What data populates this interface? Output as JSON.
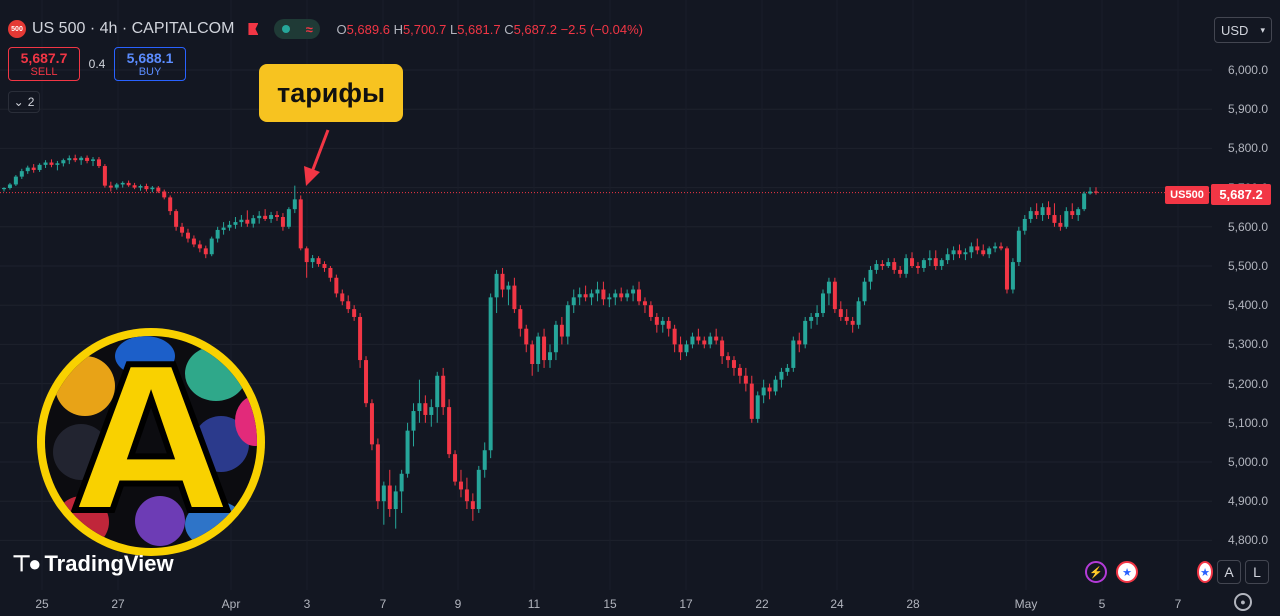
{
  "header": {
    "symbol_badge": "500",
    "title": "US 500 · 4h · CAPITALCOM",
    "ohlc": {
      "o_label": "O",
      "o": "5,689.6",
      "h_label": "H",
      "h": "5,700.7",
      "l_label": "L",
      "l": "5,681.7",
      "c_label": "C",
      "c": "5,687.2",
      "change": "−2.5 (−0.04%)"
    }
  },
  "trade": {
    "sell_price": "5,687.7",
    "sell_label": "SELL",
    "spread": "0.4",
    "buy_price": "5,688.1",
    "buy_label": "BUY"
  },
  "indicators_toggle": {
    "count": "2"
  },
  "currency_select": {
    "value": "USD"
  },
  "annotation": {
    "text": "тарифы"
  },
  "last_price": {
    "symbol_label": "US500",
    "value": "5,687.2"
  },
  "watermark": {
    "brand_letter": "A",
    "tv_text": "TradingView"
  },
  "bottom_controls": {
    "auto_label": "A",
    "log_label": "L"
  },
  "colors": {
    "up": "#26a69a",
    "down": "#f23645",
    "background": "#131722",
    "accent": "#f7c320"
  },
  "icons": [
    "chevron-down-icon",
    "settings-icon",
    "flag-icon",
    "lightning-icon",
    "us-flag-icon",
    "tradingview-logo-icon"
  ],
  "chart_data": {
    "type": "candlestick",
    "timeframe": "4h",
    "y_ticks": [
      "6,000.0",
      "5,900.0",
      "5,800.0",
      "5,700.0",
      "5,600.0",
      "5,500.0",
      "5,400.0",
      "5,300.0",
      "5,200.0",
      "5,100.0",
      "5,000.0",
      "4,900.0",
      "4,800.0"
    ],
    "ylim": [
      4760,
      6040
    ],
    "x_ticks": [
      "25",
      "27",
      "Apr",
      "3",
      "7",
      "9",
      "11",
      "15",
      "17",
      "22",
      "24",
      "28",
      "May",
      "5",
      "7"
    ],
    "last_price": 5687.2,
    "series": [
      {
        "name": "US500",
        "ohlc": [
          [
            5696,
            5701,
            5690,
            5699
          ],
          [
            5699,
            5712,
            5695,
            5708
          ],
          [
            5708,
            5732,
            5704,
            5728
          ],
          [
            5728,
            5748,
            5722,
            5742
          ],
          [
            5742,
            5756,
            5735,
            5751
          ],
          [
            5751,
            5760,
            5738,
            5745
          ],
          [
            5745,
            5762,
            5740,
            5758
          ],
          [
            5758,
            5770,
            5750,
            5764
          ],
          [
            5764,
            5772,
            5752,
            5758
          ],
          [
            5758,
            5768,
            5744,
            5762
          ],
          [
            5762,
            5774,
            5754,
            5770
          ],
          [
            5770,
            5782,
            5760,
            5775
          ],
          [
            5775,
            5784,
            5765,
            5770
          ],
          [
            5770,
            5780,
            5758,
            5776
          ],
          [
            5776,
            5782,
            5762,
            5768
          ],
          [
            5768,
            5778,
            5755,
            5772
          ],
          [
            5772,
            5778,
            5750,
            5755
          ],
          [
            5755,
            5760,
            5700,
            5705
          ],
          [
            5705,
            5715,
            5690,
            5700
          ],
          [
            5700,
            5712,
            5695,
            5708
          ],
          [
            5708,
            5716,
            5700,
            5712
          ],
          [
            5712,
            5718,
            5702,
            5706
          ],
          [
            5706,
            5712,
            5696,
            5700
          ],
          [
            5700,
            5708,
            5692,
            5704
          ],
          [
            5704,
            5710,
            5690,
            5696
          ],
          [
            5696,
            5704,
            5688,
            5700
          ],
          [
            5700,
            5704,
            5686,
            5690
          ],
          [
            5690,
            5695,
            5670,
            5675
          ],
          [
            5675,
            5680,
            5630,
            5640
          ],
          [
            5640,
            5645,
            5590,
            5600
          ],
          [
            5600,
            5610,
            5575,
            5585
          ],
          [
            5585,
            5595,
            5560,
            5570
          ],
          [
            5570,
            5578,
            5548,
            5555
          ],
          [
            5555,
            5565,
            5535,
            5545
          ],
          [
            5545,
            5552,
            5520,
            5530
          ],
          [
            5530,
            5575,
            5525,
            5570
          ],
          [
            5570,
            5600,
            5560,
            5592
          ],
          [
            5592,
            5612,
            5580,
            5598
          ],
          [
            5598,
            5615,
            5590,
            5605
          ],
          [
            5605,
            5625,
            5595,
            5612
          ],
          [
            5612,
            5630,
            5600,
            5618
          ],
          [
            5618,
            5642,
            5600,
            5608
          ],
          [
            5608,
            5630,
            5598,
            5622
          ],
          [
            5622,
            5640,
            5608,
            5628
          ],
          [
            5628,
            5645,
            5615,
            5620
          ],
          [
            5620,
            5638,
            5610,
            5630
          ],
          [
            5630,
            5640,
            5615,
            5625
          ],
          [
            5625,
            5635,
            5590,
            5600
          ],
          [
            5600,
            5650,
            5595,
            5645
          ],
          [
            5645,
            5705,
            5635,
            5670
          ],
          [
            5670,
            5680,
            5540,
            5545
          ],
          [
            5545,
            5550,
            5470,
            5510
          ],
          [
            5510,
            5528,
            5495,
            5520
          ],
          [
            5520,
            5525,
            5498,
            5505
          ],
          [
            5505,
            5512,
            5485,
            5495
          ],
          [
            5495,
            5500,
            5460,
            5470
          ],
          [
            5470,
            5478,
            5420,
            5430
          ],
          [
            5430,
            5440,
            5400,
            5410
          ],
          [
            5410,
            5425,
            5380,
            5390
          ],
          [
            5390,
            5400,
            5360,
            5370
          ],
          [
            5370,
            5380,
            5240,
            5260
          ],
          [
            5260,
            5270,
            5140,
            5150
          ],
          [
            5150,
            5160,
            5030,
            5045
          ],
          [
            5045,
            5060,
            4880,
            4900
          ],
          [
            4900,
            4950,
            4840,
            4940
          ],
          [
            4940,
            4980,
            4860,
            4880
          ],
          [
            4880,
            4940,
            4830,
            4925
          ],
          [
            4925,
            4980,
            4870,
            4970
          ],
          [
            4970,
            5100,
            4960,
            5080
          ],
          [
            5080,
            5150,
            5040,
            5130
          ],
          [
            5130,
            5210,
            5100,
            5150
          ],
          [
            5150,
            5170,
            5100,
            5120
          ],
          [
            5120,
            5160,
            5090,
            5140
          ],
          [
            5140,
            5230,
            5100,
            5220
          ],
          [
            5220,
            5240,
            5120,
            5140
          ],
          [
            5140,
            5160,
            5010,
            5020
          ],
          [
            5020,
            5030,
            4940,
            4950
          ],
          [
            4950,
            4980,
            4910,
            4930
          ],
          [
            4930,
            4960,
            4880,
            4900
          ],
          [
            4900,
            4920,
            4850,
            4880
          ],
          [
            4880,
            4990,
            4870,
            4980
          ],
          [
            4980,
            5050,
            4960,
            5030
          ],
          [
            5030,
            5430,
            5010,
            5420
          ],
          [
            5420,
            5490,
            5380,
            5480
          ],
          [
            5480,
            5495,
            5420,
            5440
          ],
          [
            5440,
            5460,
            5400,
            5450
          ],
          [
            5450,
            5470,
            5380,
            5390
          ],
          [
            5390,
            5400,
            5320,
            5340
          ],
          [
            5340,
            5350,
            5280,
            5300
          ],
          [
            5300,
            5310,
            5220,
            5250
          ],
          [
            5250,
            5330,
            5230,
            5320
          ],
          [
            5320,
            5340,
            5240,
            5260
          ],
          [
            5260,
            5300,
            5240,
            5280
          ],
          [
            5280,
            5360,
            5260,
            5350
          ],
          [
            5350,
            5370,
            5300,
            5320
          ],
          [
            5320,
            5410,
            5300,
            5400
          ],
          [
            5400,
            5440,
            5380,
            5420
          ],
          [
            5420,
            5445,
            5400,
            5428
          ],
          [
            5428,
            5450,
            5410,
            5420
          ],
          [
            5420,
            5440,
            5400,
            5430
          ],
          [
            5430,
            5460,
            5410,
            5440
          ],
          [
            5440,
            5460,
            5400,
            5415
          ],
          [
            5415,
            5430,
            5395,
            5420
          ],
          [
            5420,
            5440,
            5400,
            5430
          ],
          [
            5430,
            5445,
            5410,
            5420
          ],
          [
            5420,
            5440,
            5410,
            5430
          ],
          [
            5430,
            5450,
            5410,
            5440
          ],
          [
            5440,
            5460,
            5400,
            5410
          ],
          [
            5410,
            5420,
            5380,
            5400
          ],
          [
            5400,
            5410,
            5360,
            5370
          ],
          [
            5370,
            5380,
            5330,
            5350
          ],
          [
            5350,
            5370,
            5330,
            5360
          ],
          [
            5360,
            5370,
            5320,
            5340
          ],
          [
            5340,
            5350,
            5280,
            5300
          ],
          [
            5300,
            5320,
            5260,
            5280
          ],
          [
            5280,
            5310,
            5270,
            5300
          ],
          [
            5300,
            5330,
            5290,
            5320
          ],
          [
            5320,
            5340,
            5300,
            5310
          ],
          [
            5310,
            5320,
            5290,
            5300
          ],
          [
            5300,
            5330,
            5290,
            5320
          ],
          [
            5320,
            5340,
            5300,
            5310
          ],
          [
            5310,
            5320,
            5250,
            5270
          ],
          [
            5270,
            5280,
            5240,
            5260
          ],
          [
            5260,
            5270,
            5220,
            5240
          ],
          [
            5240,
            5250,
            5200,
            5220
          ],
          [
            5220,
            5240,
            5180,
            5200
          ],
          [
            5200,
            5220,
            5100,
            5110
          ],
          [
            5110,
            5180,
            5100,
            5170
          ],
          [
            5170,
            5210,
            5150,
            5190
          ],
          [
            5190,
            5200,
            5160,
            5180
          ],
          [
            5180,
            5220,
            5170,
            5210
          ],
          [
            5210,
            5240,
            5190,
            5230
          ],
          [
            5230,
            5250,
            5220,
            5240
          ],
          [
            5240,
            5320,
            5230,
            5310
          ],
          [
            5310,
            5330,
            5280,
            5300
          ],
          [
            5300,
            5370,
            5290,
            5360
          ],
          [
            5360,
            5380,
            5340,
            5370
          ],
          [
            5370,
            5400,
            5350,
            5380
          ],
          [
            5380,
            5440,
            5370,
            5430
          ],
          [
            5430,
            5470,
            5400,
            5460
          ],
          [
            5460,
            5470,
            5380,
            5390
          ],
          [
            5390,
            5410,
            5360,
            5370
          ],
          [
            5370,
            5390,
            5350,
            5360
          ],
          [
            5360,
            5370,
            5330,
            5350
          ],
          [
            5350,
            5420,
            5340,
            5410
          ],
          [
            5410,
            5470,
            5400,
            5460
          ],
          [
            5460,
            5500,
            5440,
            5490
          ],
          [
            5490,
            5515,
            5480,
            5505
          ],
          [
            5505,
            5515,
            5490,
            5500
          ],
          [
            5500,
            5520,
            5495,
            5510
          ],
          [
            5510,
            5520,
            5480,
            5490
          ],
          [
            5490,
            5500,
            5470,
            5480
          ],
          [
            5480,
            5530,
            5470,
            5520
          ],
          [
            5520,
            5535,
            5495,
            5500
          ],
          [
            5500,
            5510,
            5480,
            5495
          ],
          [
            5495,
            5520,
            5485,
            5515
          ],
          [
            5515,
            5540,
            5500,
            5520
          ],
          [
            5520,
            5540,
            5490,
            5500
          ],
          [
            5500,
            5520,
            5490,
            5515
          ],
          [
            5515,
            5545,
            5505,
            5530
          ],
          [
            5530,
            5550,
            5515,
            5540
          ],
          [
            5540,
            5555,
            5520,
            5530
          ],
          [
            5530,
            5545,
            5515,
            5535
          ],
          [
            5535,
            5560,
            5520,
            5550
          ],
          [
            5550,
            5570,
            5530,
            5540
          ],
          [
            5540,
            5555,
            5525,
            5530
          ],
          [
            5530,
            5550,
            5520,
            5545
          ],
          [
            5545,
            5560,
            5535,
            5550
          ],
          [
            5550,
            5560,
            5540,
            5545
          ],
          [
            5545,
            5550,
            5430,
            5440
          ],
          [
            5440,
            5520,
            5430,
            5510
          ],
          [
            5510,
            5600,
            5500,
            5590
          ],
          [
            5590,
            5630,
            5580,
            5620
          ],
          [
            5620,
            5650,
            5610,
            5640
          ],
          [
            5640,
            5660,
            5620,
            5630
          ],
          [
            5630,
            5660,
            5615,
            5650
          ],
          [
            5650,
            5665,
            5620,
            5630
          ],
          [
            5630,
            5660,
            5600,
            5610
          ],
          [
            5610,
            5630,
            5590,
            5600
          ],
          [
            5600,
            5650,
            5595,
            5640
          ],
          [
            5640,
            5660,
            5620,
            5630
          ],
          [
            5630,
            5650,
            5615,
            5645
          ],
          [
            5645,
            5690,
            5640,
            5685
          ],
          [
            5685,
            5701,
            5682,
            5690
          ],
          [
            5690,
            5701,
            5682,
            5687
          ]
        ]
      }
    ],
    "annotations": [
      {
        "text": "тарифы",
        "target": "Apr 2 high"
      }
    ]
  }
}
